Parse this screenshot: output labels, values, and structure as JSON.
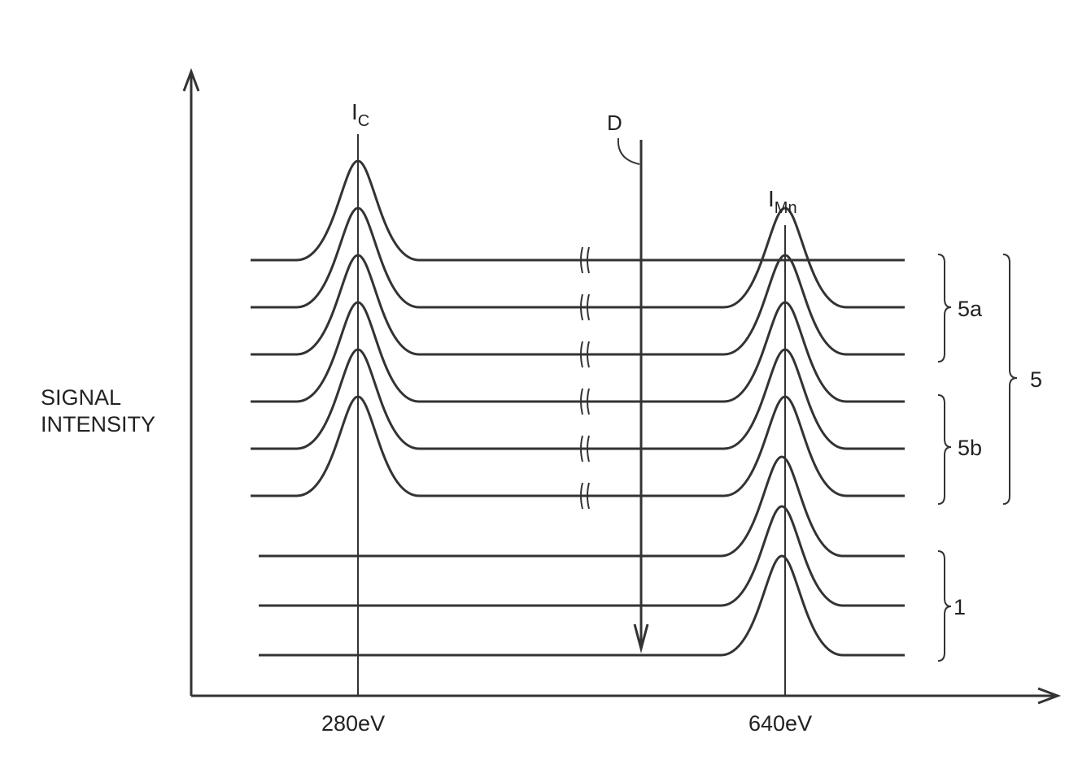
{
  "axis": {
    "y_label_line1": "SIGNAL",
    "y_label_line2": "INTENSITY",
    "x_tick_1": "280eV",
    "x_tick_2": "640eV"
  },
  "peaks": {
    "carbon_main": "I",
    "carbon_sub": "C",
    "mn_main": "I",
    "mn_sub": "Mn"
  },
  "direction_label": "D",
  "groups": {
    "sub_a": "5a",
    "sub_b": "5b",
    "parent": "5",
    "substrate": "1"
  },
  "spectra": {
    "layer_5": [
      {
        "carbon_peak": true,
        "mn_peak": false
      },
      {
        "carbon_peak": true,
        "mn_peak": true
      },
      {
        "carbon_peak": true,
        "mn_peak": true
      },
      {
        "carbon_peak": true,
        "mn_peak": true
      },
      {
        "carbon_peak": true,
        "mn_peak": true
      },
      {
        "carbon_peak": true,
        "mn_peak": true
      }
    ],
    "substrate_1": [
      {
        "carbon_peak": false,
        "mn_peak": true
      },
      {
        "carbon_peak": false,
        "mn_peak": true
      },
      {
        "carbon_peak": false,
        "mn_peak": true
      }
    ]
  }
}
